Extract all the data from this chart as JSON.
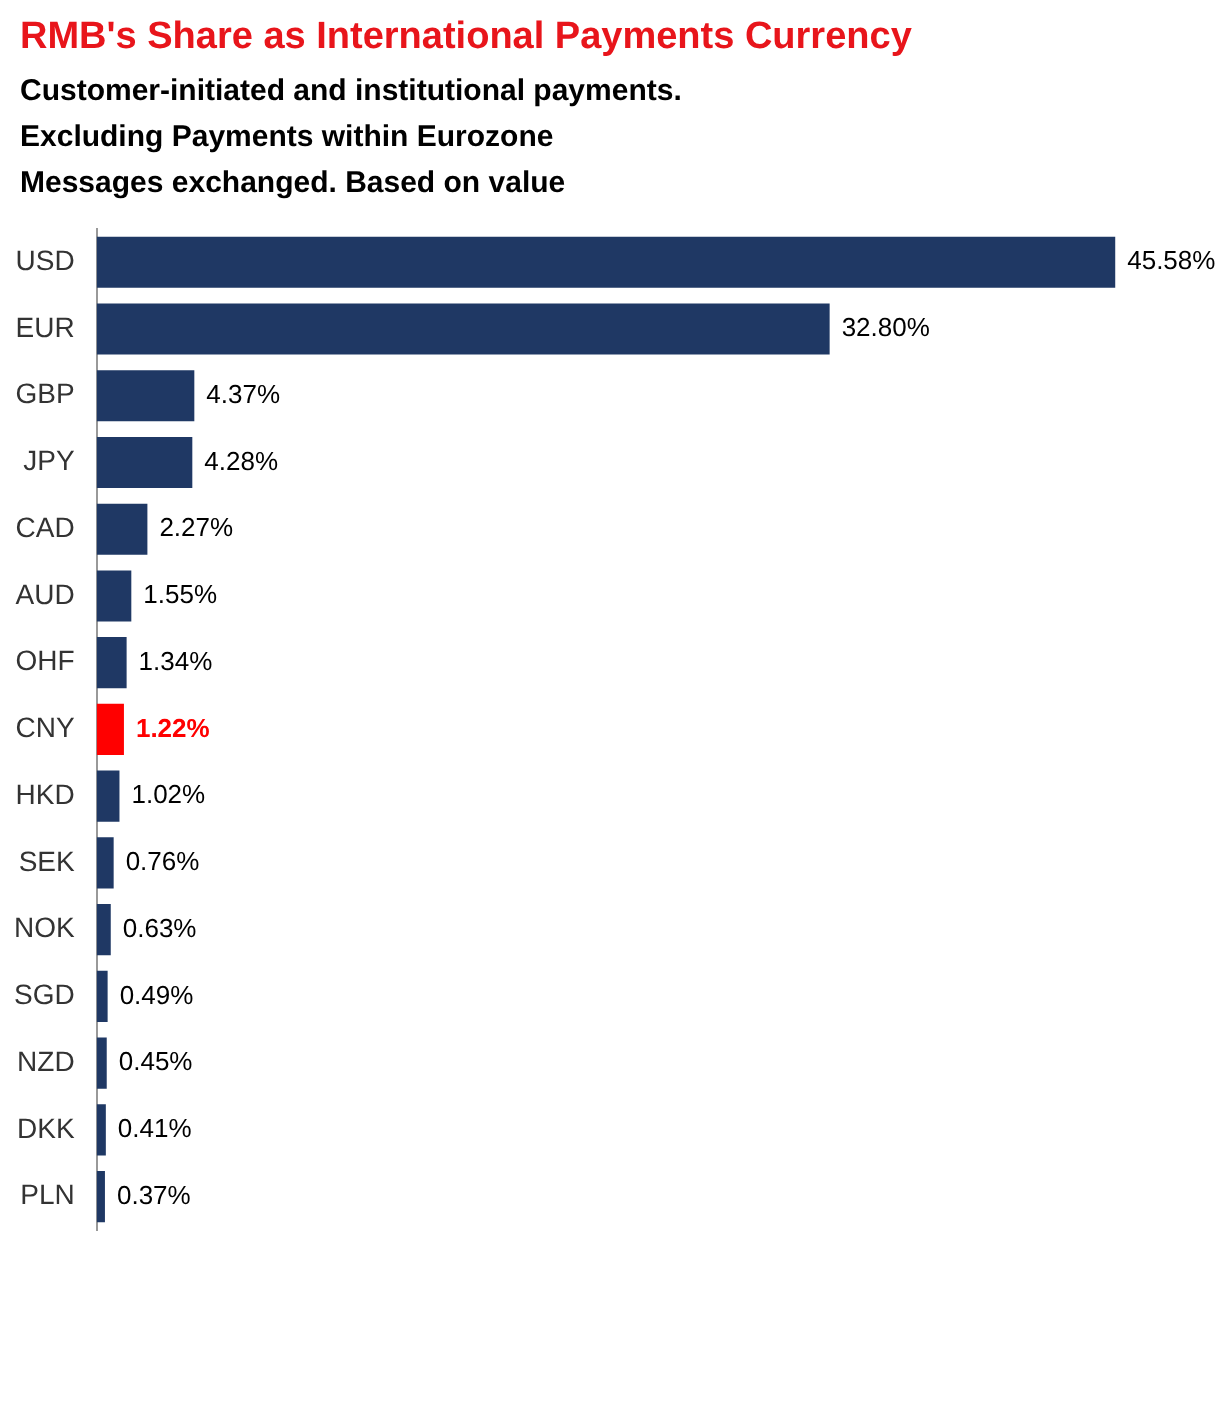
{
  "chart_data": {
    "type": "bar",
    "orientation": "horizontal",
    "title": "RMB's Share as International Payments Currency",
    "subtitle": "Customer-initiated and institutional payments.\nExcluding Payments within Eurozone\nMessages exchanged. Based on value",
    "categories": [
      "USD",
      "EUR",
      "GBP",
      "JPY",
      "CAD",
      "AUD",
      "OHF",
      "CNY",
      "HKD",
      "SEK",
      "NOK",
      "SGD",
      "NZD",
      "DKK",
      "PLN"
    ],
    "values": [
      45.58,
      32.8,
      4.37,
      4.28,
      2.27,
      1.55,
      1.34,
      1.22,
      1.02,
      0.76,
      0.63,
      0.49,
      0.45,
      0.41,
      0.37
    ],
    "value_labels": [
      "45.58%",
      "32.80%",
      "4.37%",
      "4.28%",
      "2.27%",
      "1.55%",
      "1.34%",
      "1.22%",
      "1.02%",
      "0.76%",
      "0.63%",
      "0.49%",
      "0.45%",
      "0.41%",
      "0.37%"
    ],
    "color": "#1f3864",
    "colors": [
      "#1f3864",
      "#1f3864",
      "#1f3864",
      "#1f3864",
      "#1f3864",
      "#1f3864",
      "#1f3864",
      "#ff0000",
      "#1f3864",
      "#1f3864",
      "#1f3864",
      "#1f3864",
      "#1f3864",
      "#1f3864",
      "#1f3864"
    ],
    "tick_labels": "y",
    "grid": false,
    "legend": false
  }
}
